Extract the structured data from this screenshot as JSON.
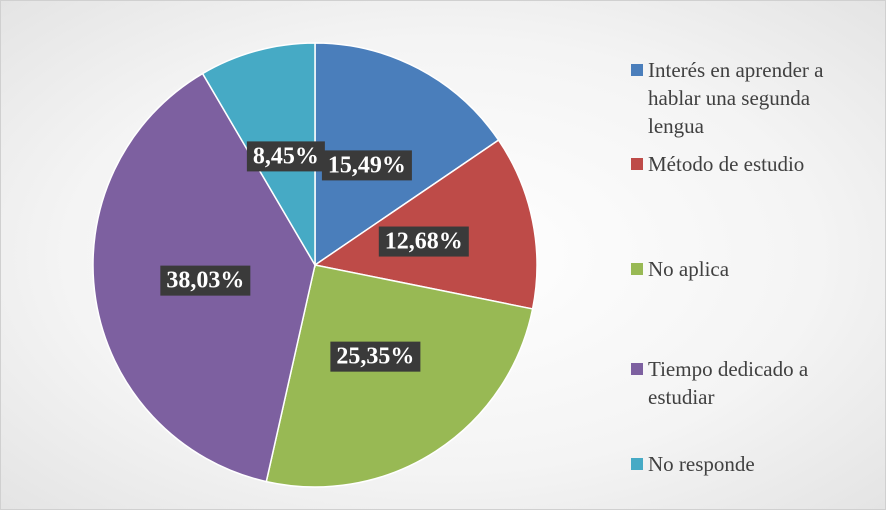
{
  "chart_data": {
    "type": "pie",
    "categories": [
      "Interés en aprender a hablar una segunda lengua",
      "Método de estudio",
      "No aplica",
      "Tiempo dedicado a estudiar",
      "No responde"
    ],
    "values": [
      15.49,
      12.68,
      25.35,
      38.03,
      8.45
    ],
    "value_labels": [
      "15,49%",
      "12,68%",
      "25,35%",
      "38,03%",
      "8,45%"
    ],
    "colors": [
      "#4a7ebb",
      "#be4b48",
      "#98b954",
      "#7d60a0",
      "#46aac5"
    ],
    "legend": "right"
  }
}
